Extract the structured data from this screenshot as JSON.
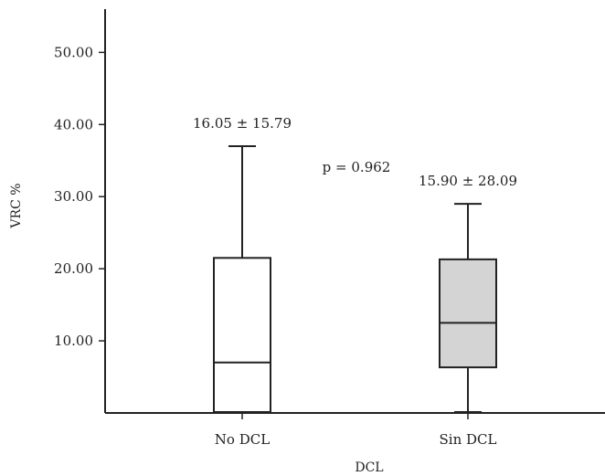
{
  "chart_data": {
    "type": "box",
    "xlabel": "DCL",
    "ylabel": "VRC %",
    "ylim": [
      0,
      56
    ],
    "yticks": [
      10,
      20,
      30,
      40,
      50
    ],
    "ytick_labels": [
      "10.00",
      "20.00",
      "30.00",
      "40.00",
      "50.00"
    ],
    "categories": [
      "No DCL",
      "Sin DCL"
    ],
    "boxes": [
      {
        "category": "No DCL",
        "min": 0,
        "q1": 0,
        "median": 7.0,
        "q3": 21.5,
        "max": 37.0,
        "fill": "#ffffff",
        "annotation": "16.05 ± 15.79"
      },
      {
        "category": "Sin DCL",
        "min": 0,
        "q1": 6.2,
        "median": 12.5,
        "q3": 21.3,
        "max": 29.0,
        "fill": "#d4d4d4",
        "annotation": "15.90 ± 28.09"
      }
    ],
    "annotations": [
      {
        "text": "p = 0.962"
      }
    ],
    "grid": false
  }
}
